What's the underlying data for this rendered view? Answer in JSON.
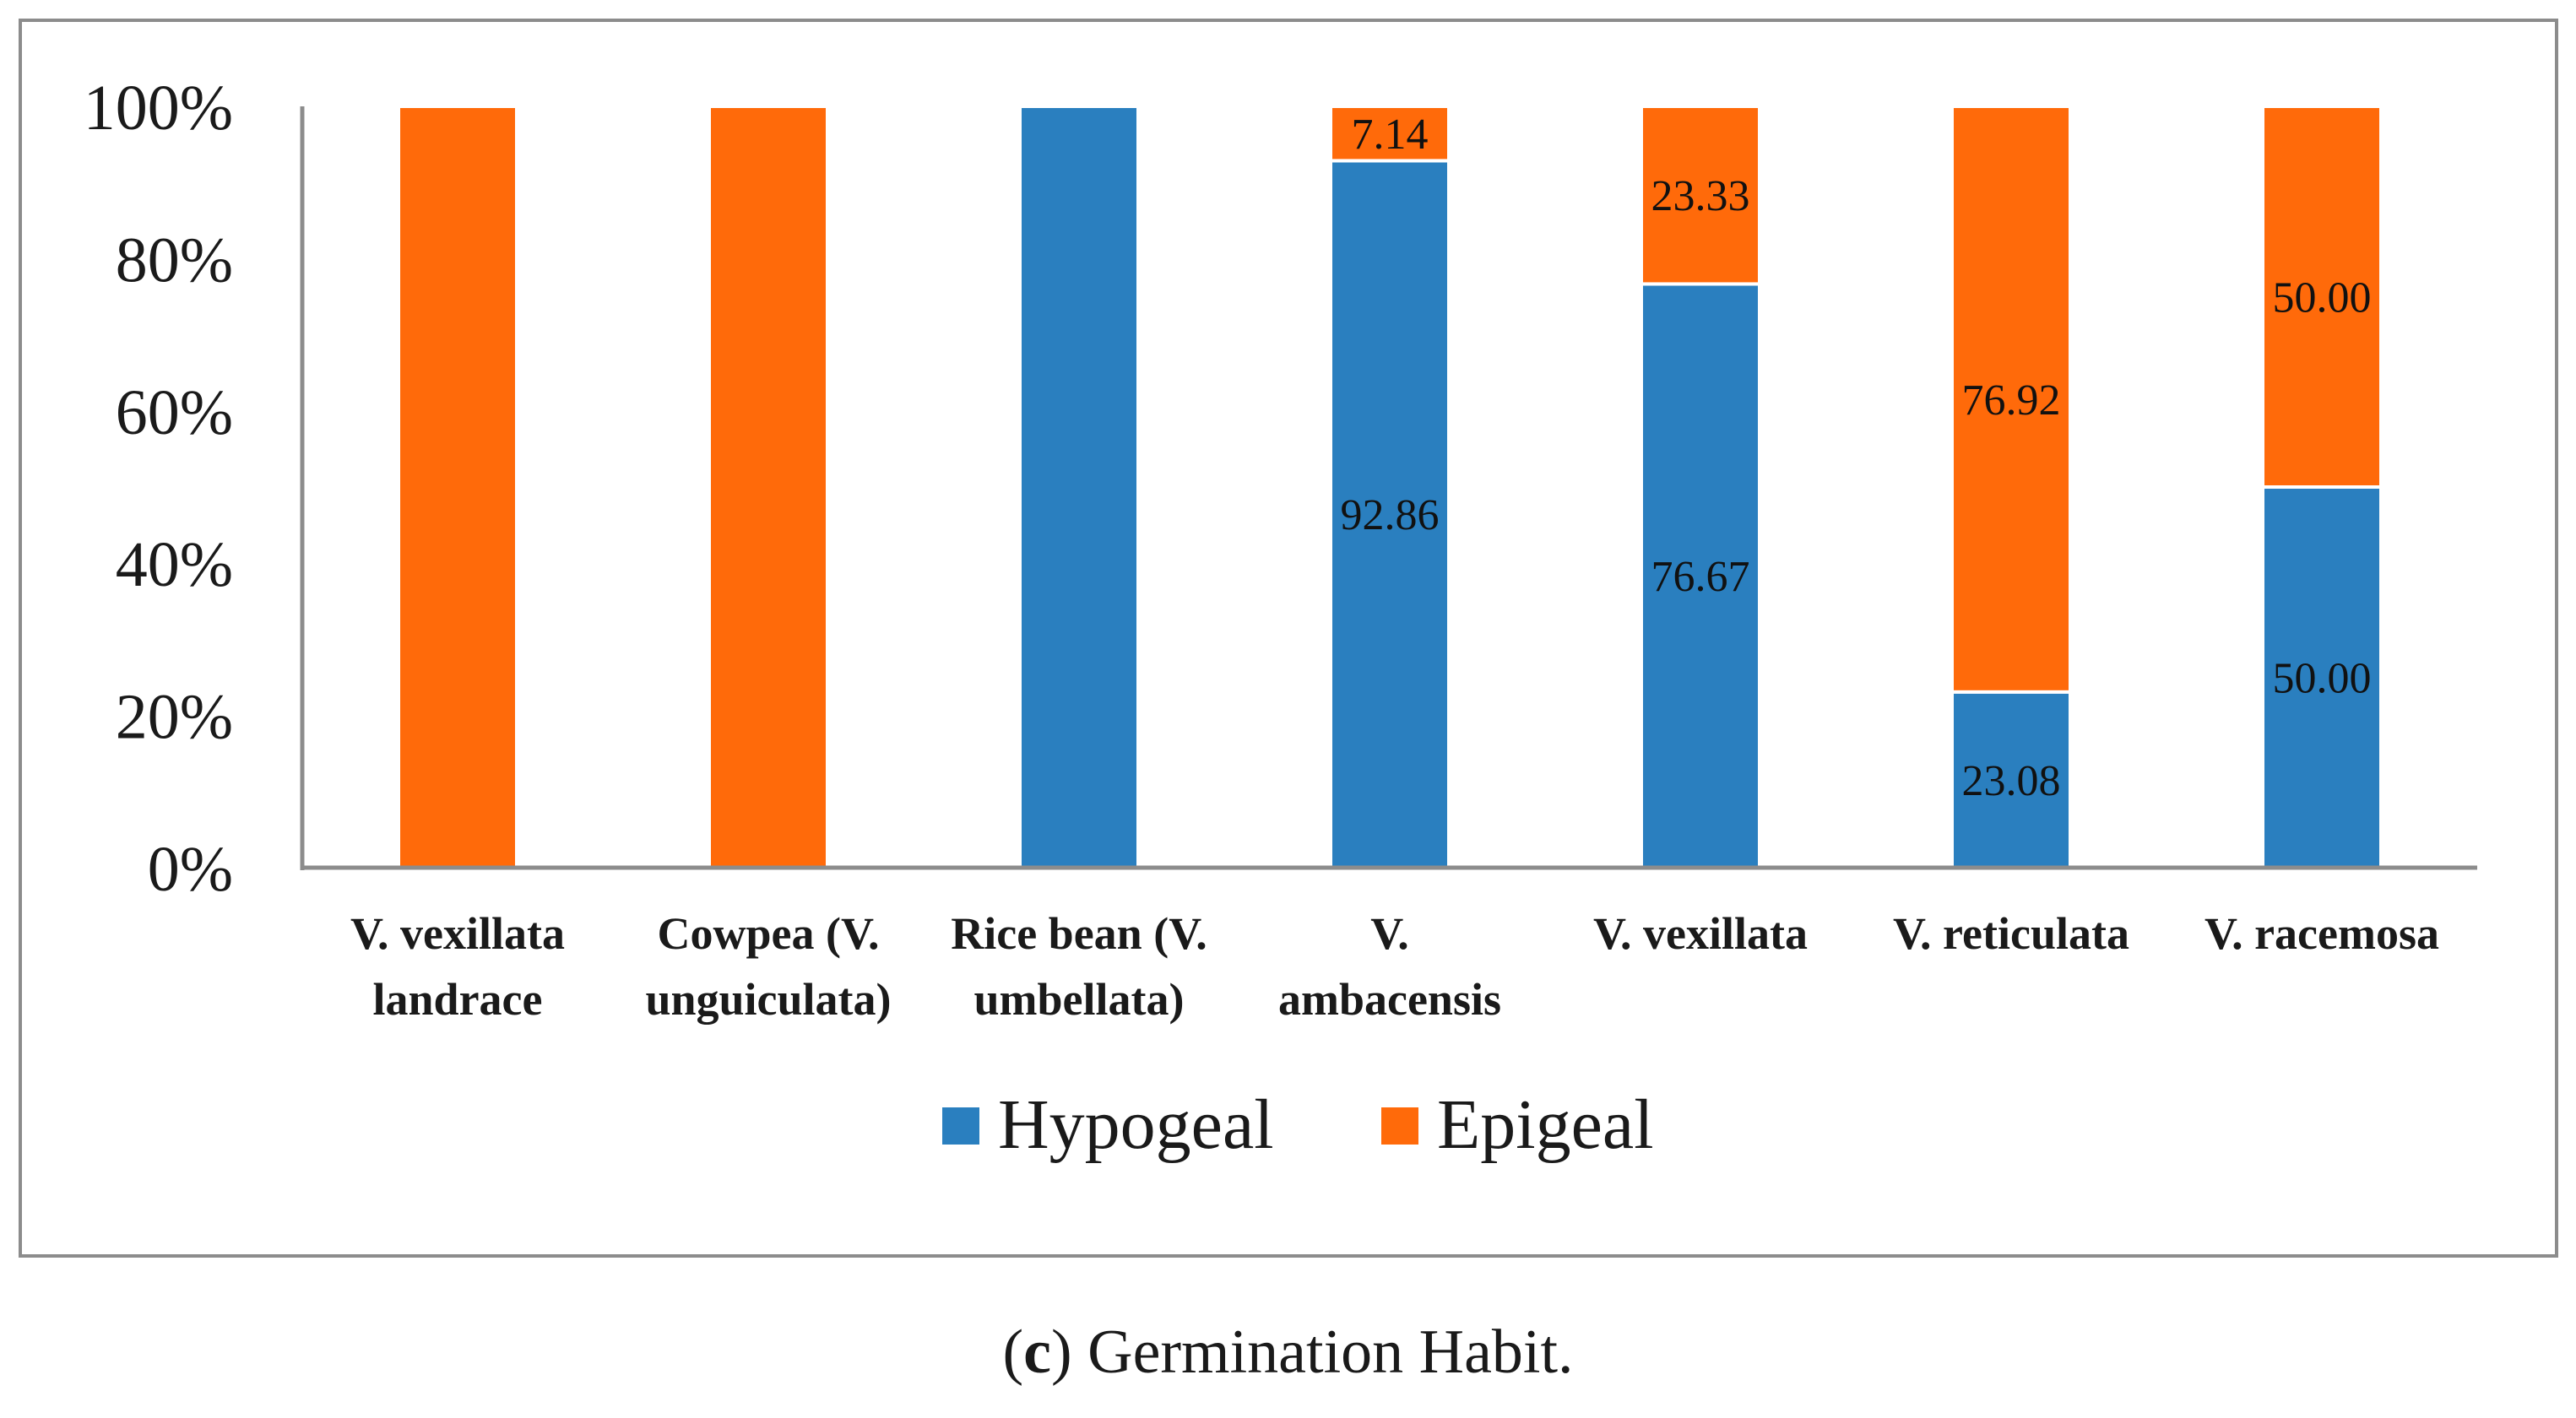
{
  "chart_data": {
    "type": "bar",
    "stacked": true,
    "percent": true,
    "categories": [
      [
        "V. vexillata",
        "landrace"
      ],
      [
        "Cowpea (V.",
        "unguiculata)"
      ],
      [
        "Rice bean (V.",
        "umbellata)"
      ],
      [
        "V.",
        "ambacensis"
      ],
      [
        "V. vexillata"
      ],
      [
        "V. reticulata"
      ],
      [
        "V. racemosa"
      ]
    ],
    "series": [
      {
        "name": "Hypogeal",
        "color": "#2a7fbf",
        "values": [
          0,
          0,
          100,
          92.86,
          76.67,
          23.08,
          50.0
        ],
        "labels": [
          "",
          "",
          "",
          "92.86",
          "76.67",
          "23.08",
          "50.00"
        ]
      },
      {
        "name": "Epigeal",
        "color": "#ff6a0a",
        "values": [
          100,
          100,
          0,
          7.14,
          23.33,
          76.92,
          50.0
        ],
        "labels": [
          "",
          "",
          "",
          "7.14",
          "23.33",
          "76.92",
          "50.00"
        ]
      }
    ],
    "yticks": [
      "0%",
      "20%",
      "40%",
      "60%",
      "80%",
      "100%"
    ],
    "ylim": [
      0,
      100
    ],
    "legend_position": "bottom"
  },
  "caption": {
    "letter": "c",
    "open": "(",
    "close": ")",
    "text": " Germination Habit."
  }
}
